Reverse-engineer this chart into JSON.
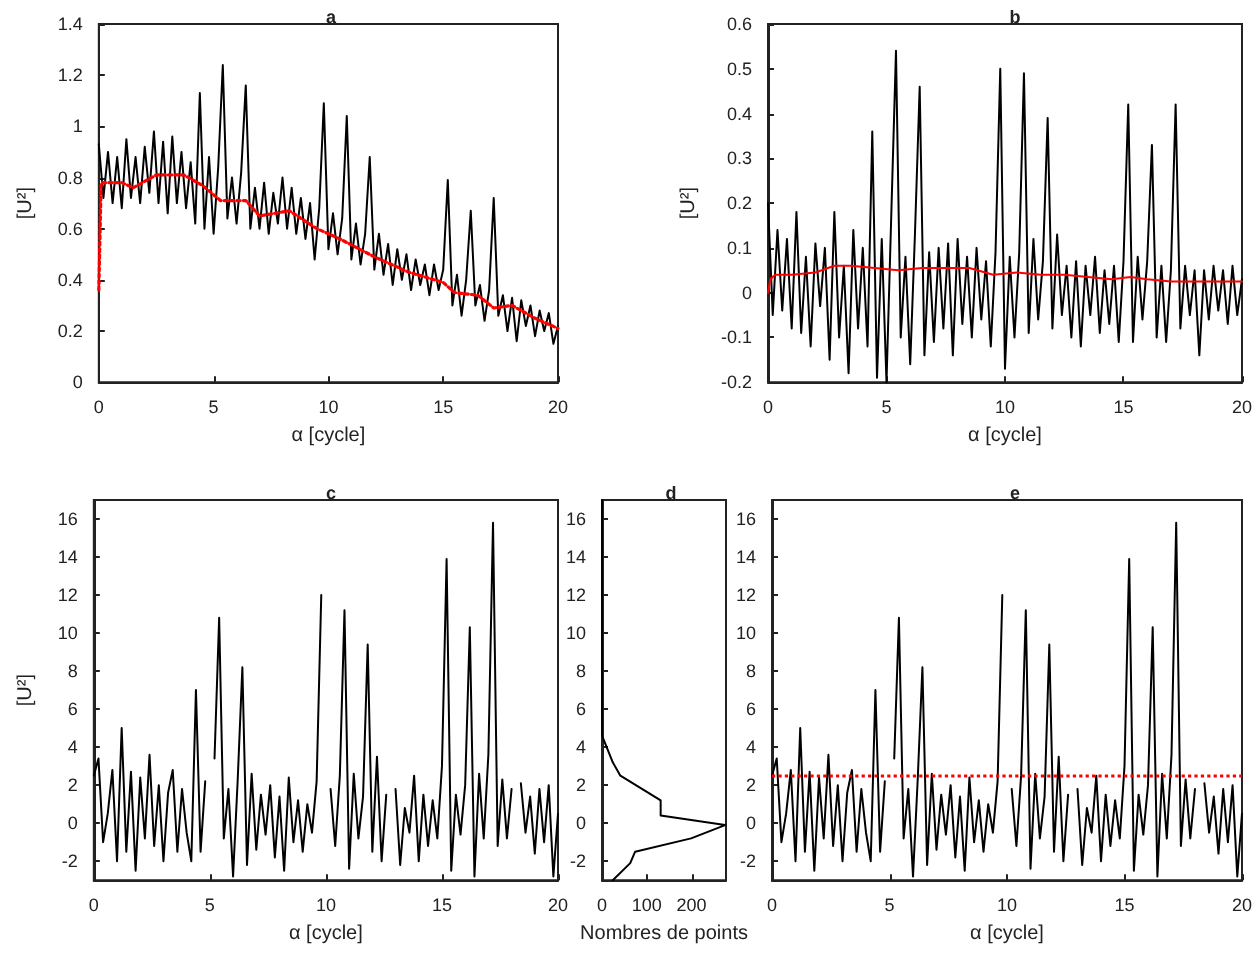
{
  "chart_data": [
    {
      "type": "line",
      "title": "a",
      "xlabel": "α [cycle]",
      "ylabel": "[U²]",
      "marker": "none",
      "xlim": [
        0,
        20
      ],
      "xticks": [
        0,
        5,
        10,
        15,
        20
      ],
      "ylim": [
        0,
        1.4
      ],
      "yticks": [
        0,
        0.2,
        0.4,
        0.6,
        0.8,
        1,
        1.2,
        1.4
      ],
      "x": [
        0,
        0.2,
        0.4,
        0.6,
        0.8,
        1,
        1.2,
        1.4,
        1.6,
        1.8,
        2,
        2.2,
        2.4,
        2.6,
        2.8,
        3,
        3.2,
        3.4,
        3.6,
        3.8,
        4,
        4.2,
        4.4,
        4.6,
        4.8,
        5,
        5.2,
        5.4,
        5.6,
        5.8,
        6,
        6.2,
        6.4,
        6.6,
        6.8,
        7,
        7.2,
        7.4,
        7.6,
        7.8,
        8,
        8.2,
        8.4,
        8.6,
        8.8,
        9,
        9.2,
        9.4,
        9.6,
        9.8,
        10,
        10.2,
        10.4,
        10.6,
        10.8,
        11,
        11.2,
        11.4,
        11.6,
        11.8,
        12,
        12.2,
        12.4,
        12.6,
        12.8,
        13,
        13.2,
        13.4,
        13.6,
        13.8,
        14,
        14.2,
        14.4,
        14.6,
        14.8,
        15,
        15.2,
        15.4,
        15.6,
        15.8,
        16,
        16.2,
        16.4,
        16.6,
        16.8,
        17,
        17.2,
        17.4,
        17.6,
        17.8,
        18,
        18.2,
        18.4,
        18.6,
        18.8,
        19,
        19.2,
        19.4,
        19.6,
        19.8,
        20
      ],
      "series": [
        {
          "color": "#000000",
          "values": [
            0.93,
            0.72,
            0.9,
            0.7,
            0.88,
            0.68,
            0.95,
            0.72,
            0.88,
            0.7,
            0.92,
            0.74,
            0.98,
            0.7,
            0.94,
            0.66,
            0.96,
            0.7,
            0.9,
            0.68,
            0.86,
            0.62,
            1.13,
            0.6,
            0.88,
            0.58,
            0.84,
            1.24,
            0.64,
            0.8,
            0.62,
            0.82,
            1.16,
            0.6,
            0.76,
            0.6,
            0.78,
            0.58,
            0.74,
            0.62,
            0.8,
            0.6,
            0.76,
            0.58,
            0.72,
            0.56,
            0.7,
            0.48,
            0.68,
            1.09,
            0.52,
            0.66,
            0.5,
            0.64,
            1.04,
            0.48,
            0.62,
            0.46,
            0.58,
            0.88,
            0.44,
            0.58,
            0.42,
            0.54,
            0.38,
            0.52,
            0.4,
            0.5,
            0.36,
            0.48,
            0.38,
            0.46,
            0.34,
            0.46,
            0.36,
            0.44,
            0.79,
            0.3,
            0.42,
            0.26,
            0.4,
            0.67,
            0.3,
            0.38,
            0.24,
            0.36,
            0.72,
            0.26,
            0.34,
            0.2,
            0.33,
            0.16,
            0.32,
            0.22,
            0.3,
            0.18,
            0.28,
            0.2,
            0.27,
            0.15,
            0.22
          ]
        },
        {
          "color": "#ff0000",
          "line_style": "dotted",
          "x": [
            0,
            0.1,
            1,
            1.5,
            2.5,
            3.7,
            4.5,
            5.3,
            6.4,
            7,
            8.3,
            9.5,
            10.5,
            12,
            13.5,
            15,
            15.5,
            16.5,
            17.2,
            18,
            19,
            20
          ],
          "values": [
            0.36,
            0.78,
            0.78,
            0.76,
            0.81,
            0.81,
            0.77,
            0.71,
            0.71,
            0.65,
            0.67,
            0.6,
            0.56,
            0.49,
            0.43,
            0.39,
            0.35,
            0.34,
            0.29,
            0.3,
            0.25,
            0.21
          ]
        }
      ]
    },
    {
      "type": "line",
      "title": "b",
      "xlabel": "α [cycle]",
      "ylabel": "[U²]",
      "marker": "none",
      "xlim": [
        0,
        20
      ],
      "xticks": [
        0,
        5,
        10,
        15,
        20
      ],
      "ylim": [
        -0.2,
        0.6
      ],
      "yticks": [
        -0.2,
        -0.1,
        0,
        0.1,
        0.2,
        0.3,
        0.4,
        0.5,
        0.6
      ],
      "x": [
        0,
        0.2,
        0.4,
        0.6,
        0.8,
        1,
        1.2,
        1.4,
        1.6,
        1.8,
        2,
        2.2,
        2.4,
        2.6,
        2.8,
        3,
        3.2,
        3.4,
        3.6,
        3.8,
        4,
        4.2,
        4.4,
        4.6,
        4.8,
        5,
        5.2,
        5.4,
        5.6,
        5.8,
        6,
        6.2,
        6.4,
        6.6,
        6.8,
        7,
        7.2,
        7.4,
        7.6,
        7.8,
        8,
        8.2,
        8.4,
        8.6,
        8.8,
        9,
        9.2,
        9.4,
        9.6,
        9.8,
        10,
        10.2,
        10.4,
        10.6,
        10.8,
        11,
        11.2,
        11.4,
        11.6,
        11.8,
        12,
        12.2,
        12.4,
        12.6,
        12.8,
        13,
        13.2,
        13.4,
        13.6,
        13.8,
        14,
        14.2,
        14.4,
        14.6,
        14.8,
        15,
        15.2,
        15.4,
        15.6,
        15.8,
        16,
        16.2,
        16.4,
        16.6,
        16.8,
        17,
        17.2,
        17.4,
        17.6,
        17.8,
        18,
        18.2,
        18.4,
        18.6,
        18.8,
        19,
        19.2,
        19.4,
        19.6,
        19.8,
        20
      ],
      "series": [
        {
          "color": "#000000",
          "values": [
            0.2,
            -0.05,
            0.14,
            -0.04,
            0.12,
            -0.08,
            0.18,
            -0.09,
            0.08,
            -0.12,
            0.11,
            -0.03,
            0.1,
            -0.15,
            0.18,
            -0.1,
            0.06,
            -0.18,
            0.14,
            -0.08,
            0.1,
            -0.12,
            0.36,
            -0.19,
            0.12,
            -0.2,
            0.17,
            0.54,
            -0.1,
            0.08,
            -0.16,
            0.13,
            0.46,
            -0.14,
            0.09,
            -0.11,
            0.1,
            -0.08,
            0.11,
            -0.14,
            0.12,
            -0.07,
            0.08,
            -0.1,
            0.1,
            -0.06,
            0.07,
            -0.12,
            0.09,
            0.5,
            -0.17,
            0.08,
            -0.1,
            0.09,
            0.49,
            -0.09,
            0.12,
            -0.06,
            0.07,
            0.39,
            -0.08,
            0.13,
            -0.05,
            0.06,
            -0.1,
            0.07,
            -0.12,
            0.06,
            -0.05,
            0.08,
            -0.09,
            0.05,
            -0.07,
            0.06,
            -0.11,
            0.07,
            0.42,
            -0.11,
            0.08,
            -0.06,
            0.07,
            0.33,
            -0.1,
            0.06,
            -0.11,
            0.05,
            0.42,
            -0.08,
            0.06,
            -0.05,
            0.05,
            -0.14,
            0.05,
            -0.06,
            0.06,
            -0.04,
            0.05,
            -0.07,
            0.06,
            -0.05,
            0.03
          ]
        },
        {
          "color": "#ff0000",
          "x": [
            0,
            0.1,
            0.3,
            1,
            2,
            2.8,
            3.5,
            4.5,
            5.5,
            6.5,
            7.5,
            8.5,
            9.5,
            10.5,
            11.5,
            12.5,
            13.5,
            14.5,
            15.3,
            16,
            17,
            18,
            19,
            20
          ],
          "values": [
            0,
            0.03,
            0.04,
            0.04,
            0.045,
            0.06,
            0.06,
            0.055,
            0.05,
            0.055,
            0.055,
            0.055,
            0.04,
            0.045,
            0.04,
            0.04,
            0.035,
            0.03,
            0.035,
            0.03,
            0.025,
            0.025,
            0.025,
            0.025
          ]
        }
      ]
    },
    {
      "type": "line",
      "title": "c",
      "xlabel": "α [cycle]",
      "ylabel": "[U²]",
      "marker": "none",
      "xlim": [
        0,
        20
      ],
      "xticks": [
        0,
        5,
        10,
        15,
        20
      ],
      "ylim": [
        -3,
        17
      ],
      "yticks": [
        -2,
        0,
        2,
        4,
        6,
        8,
        10,
        12,
        14,
        16
      ],
      "x": [
        0,
        0.2,
        0.4,
        0.6,
        0.8,
        1,
        1.2,
        1.4,
        1.6,
        1.8,
        2,
        2.2,
        2.4,
        2.6,
        2.8,
        3,
        3.2,
        3.4,
        3.6,
        3.8,
        4,
        4.2,
        4.4,
        4.6,
        4.8,
        5,
        5.2,
        5.4,
        5.6,
        5.8,
        6,
        6.2,
        6.4,
        6.6,
        6.8,
        7,
        7.2,
        7.4,
        7.6,
        7.8,
        8,
        8.2,
        8.4,
        8.6,
        8.8,
        9,
        9.2,
        9.4,
        9.6,
        9.8,
        10,
        10.2,
        10.4,
        10.6,
        10.8,
        11,
        11.2,
        11.4,
        11.6,
        11.8,
        12,
        12.2,
        12.4,
        12.6,
        12.8,
        13,
        13.2,
        13.4,
        13.6,
        13.8,
        14,
        14.2,
        14.4,
        14.6,
        14.8,
        15,
        15.2,
        15.4,
        15.6,
        15.8,
        16,
        16.2,
        16.4,
        16.6,
        16.8,
        17,
        17.2,
        17.4,
        17.6,
        17.8,
        18,
        18.2,
        18.4,
        18.6,
        18.8,
        19,
        19.2,
        19.4,
        19.6,
        19.8,
        20
      ],
      "series": [
        {
          "color": "#000000",
          "values": [
            2.5,
            3.4,
            -1,
            0.5,
            2.8,
            -2,
            5,
            -1.5,
            2.7,
            -2.5,
            2.4,
            -0.8,
            3.6,
            -1.2,
            2,
            -2,
            1.6,
            2.8,
            -1.5,
            1.8,
            -0.5,
            -2,
            7,
            -1.5,
            2.2,
            null,
            3.4,
            10.8,
            -0.8,
            1.8,
            -2.8,
            2.3,
            8.2,
            -2.2,
            2.6,
            -1.4,
            1.5,
            -0.6,
            2,
            -1.8,
            1.4,
            -2.5,
            2.4,
            -1,
            1.2,
            -1.5,
            1,
            -0.5,
            2.2,
            12,
            null,
            1.8,
            -1.2,
            2.5,
            11.2,
            -2.4,
            2.6,
            -0.8,
            1.4,
            9.4,
            -1.5,
            3.5,
            -2,
            1.5,
            null,
            1.8,
            -2.2,
            0.8,
            -0.5,
            2.5,
            -2,
            1.5,
            -1.2,
            1.2,
            -0.8,
            3,
            13.9,
            -2.5,
            1.5,
            -0.6,
            2,
            10.3,
            -2.8,
            2.6,
            -0.8,
            3.6,
            15.8,
            -1.2,
            2.3,
            -0.8,
            1.8,
            null,
            2.1,
            -0.5,
            1.4,
            -1.6,
            1.8,
            -1,
            2,
            -2.8,
            0.5
          ]
        }
      ]
    },
    {
      "type": "line",
      "title": "d",
      "xlabel": "Nombres de points",
      "marker": "none",
      "xlim": [
        0,
        277
      ],
      "xticks": [
        0,
        100,
        200
      ],
      "ylim": [
        -3,
        17
      ],
      "yticks": [
        -2,
        0,
        2,
        4,
        6,
        8,
        10,
        12,
        14,
        16
      ],
      "series": [
        {
          "color": "#000000",
          "x": [
            24,
            63,
            74,
            199,
            275,
            131,
            131,
            41,
            24,
            7,
            0,
            0
          ],
          "values": [
            -3,
            -2.1,
            -1.5,
            -0.8,
            -0.1,
            0.4,
            1.2,
            2.5,
            3.2,
            4.2,
            4.6,
            17
          ]
        }
      ]
    },
    {
      "type": "line",
      "title": "e",
      "xlabel": "α [cycle]",
      "marker": "none",
      "xlim": [
        0,
        20
      ],
      "xticks": [
        0,
        5,
        10,
        15,
        20
      ],
      "ylim": [
        -3,
        17
      ],
      "yticks": [
        -2,
        0,
        2,
        4,
        6,
        8,
        10,
        12,
        14,
        16
      ],
      "x": [
        0,
        0.2,
        0.4,
        0.6,
        0.8,
        1,
        1.2,
        1.4,
        1.6,
        1.8,
        2,
        2.2,
        2.4,
        2.6,
        2.8,
        3,
        3.2,
        3.4,
        3.6,
        3.8,
        4,
        4.2,
        4.4,
        4.6,
        4.8,
        5,
        5.2,
        5.4,
        5.6,
        5.8,
        6,
        6.2,
        6.4,
        6.6,
        6.8,
        7,
        7.2,
        7.4,
        7.6,
        7.8,
        8,
        8.2,
        8.4,
        8.6,
        8.8,
        9,
        9.2,
        9.4,
        9.6,
        9.8,
        10,
        10.2,
        10.4,
        10.6,
        10.8,
        11,
        11.2,
        11.4,
        11.6,
        11.8,
        12,
        12.2,
        12.4,
        12.6,
        12.8,
        13,
        13.2,
        13.4,
        13.6,
        13.8,
        14,
        14.2,
        14.4,
        14.6,
        14.8,
        15,
        15.2,
        15.4,
        15.6,
        15.8,
        16,
        16.2,
        16.4,
        16.6,
        16.8,
        17,
        17.2,
        17.4,
        17.6,
        17.8,
        18,
        18.2,
        18.4,
        18.6,
        18.8,
        19,
        19.2,
        19.4,
        19.6,
        19.8,
        20
      ],
      "series": [
        {
          "color": "#000000",
          "values": [
            2.5,
            3.4,
            -1,
            0.5,
            2.8,
            -2,
            5,
            -1.5,
            2.7,
            -2.5,
            2.4,
            -0.8,
            3.6,
            -1.2,
            2,
            -2,
            1.6,
            2.8,
            -1.5,
            1.8,
            -0.5,
            -2,
            7,
            -1.5,
            2.2,
            null,
            3.4,
            10.8,
            -0.8,
            1.8,
            -2.8,
            2.3,
            8.2,
            -2.2,
            2.6,
            -1.4,
            1.5,
            -0.6,
            2,
            -1.8,
            1.4,
            -2.5,
            2.4,
            -1,
            1.2,
            -1.5,
            1,
            -0.5,
            2.2,
            12,
            null,
            1.8,
            -1.2,
            2.5,
            11.2,
            -2.4,
            2.6,
            -0.8,
            1.4,
            9.4,
            -1.5,
            3.5,
            -2,
            1.5,
            null,
            1.8,
            -2.2,
            0.8,
            -0.5,
            2.5,
            -2,
            1.5,
            -1.2,
            1.2,
            -0.8,
            3,
            13.9,
            -2.5,
            1.5,
            -0.6,
            2,
            10.3,
            -2.8,
            2.6,
            -0.8,
            3.6,
            15.8,
            -1.2,
            2.3,
            -0.8,
            1.8,
            null,
            2.1,
            -0.5,
            1.4,
            -1.6,
            1.8,
            -1,
            2,
            -2.8,
            0.5
          ]
        }
      ],
      "ref_lines": [
        {
          "axis": "y",
          "value": 2.5,
          "color": "#ff0000",
          "line_style": "dotted"
        }
      ]
    }
  ]
}
